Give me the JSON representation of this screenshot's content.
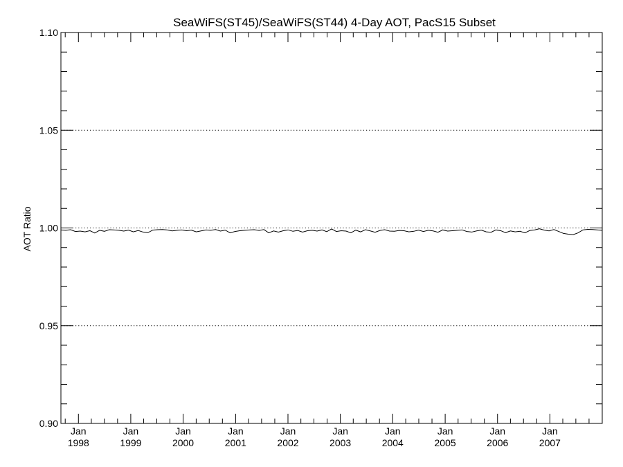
{
  "chart_data": {
    "type": "line",
    "title": "SeaWiFS(ST45)/SeaWiFS(ST44) 4-Day AOT, PacS15 Subset",
    "xlabel": "",
    "ylabel": "AOT Ratio",
    "ylim": [
      0.9,
      1.1
    ],
    "y_ticks": [
      "0.90",
      "0.95",
      "1.00",
      "1.05",
      "1.10"
    ],
    "y_ticks_values": [
      0.9,
      0.95,
      1.0,
      1.05,
      1.1
    ],
    "x_range": [
      "1997-09-01",
      "2008-01-01"
    ],
    "x_ticks": [
      {
        "month": "Jan",
        "year": "1998"
      },
      {
        "month": "Jan",
        "year": "1999"
      },
      {
        "month": "Jan",
        "year": "2000"
      },
      {
        "month": "Jan",
        "year": "2001"
      },
      {
        "month": "Jan",
        "year": "2002"
      },
      {
        "month": "Jan",
        "year": "2003"
      },
      {
        "month": "Jan",
        "year": "2004"
      },
      {
        "month": "Jan",
        "year": "2005"
      },
      {
        "month": "Jan",
        "year": "2006"
      },
      {
        "month": "Jan",
        "year": "2007"
      }
    ],
    "reference_lines": [
      0.95,
      1.0,
      1.05
    ],
    "grid": "dotted horizontal at 0.95, 1.00, 1.05",
    "series": [
      {
        "values": [
          0.999,
          0.9988,
          0.9991,
          0.9982,
          0.9984,
          0.998,
          0.9986,
          0.9974,
          0.9988,
          0.9983,
          0.9991,
          0.999,
          0.9988,
          0.9984,
          0.9989,
          0.998,
          0.9987,
          0.9979,
          0.9976,
          0.9989,
          0.9991,
          0.9992,
          0.999,
          0.9985,
          0.9988,
          0.999,
          0.9986,
          0.9989,
          0.998,
          0.9985,
          0.999,
          0.9988,
          0.9992,
          0.9984,
          0.9989,
          0.9975,
          0.9982,
          0.9986,
          0.9988,
          0.999,
          0.9991,
          0.9987,
          0.9992,
          0.9975,
          0.9985,
          0.9979,
          0.9986,
          0.999,
          0.9983,
          0.9987,
          0.9979,
          0.9986,
          0.9988,
          0.9984,
          0.999,
          0.9981,
          0.9995,
          0.9982,
          0.9986,
          0.9984,
          0.9975,
          0.9989,
          0.998,
          0.9991,
          0.9985,
          0.9978,
          0.9987,
          0.9991,
          0.9984,
          0.9983,
          0.9987,
          0.9986,
          0.998,
          0.9983,
          0.9989,
          0.9982,
          0.9988,
          0.9985,
          0.9978,
          0.999,
          0.9984,
          0.9986,
          0.9988,
          0.999,
          0.9982,
          0.9979,
          0.9985,
          0.9989,
          0.998,
          0.9978,
          0.999,
          0.9986,
          0.9976,
          0.9985,
          0.998,
          0.9983,
          0.9975,
          0.9987,
          0.999,
          0.9996,
          0.9989,
          0.9985,
          0.9992,
          0.9982,
          0.9972,
          0.9968,
          0.9966,
          0.9975,
          0.999,
          0.9993,
          0.9992,
          0.999,
          0.9988
        ]
      }
    ]
  }
}
